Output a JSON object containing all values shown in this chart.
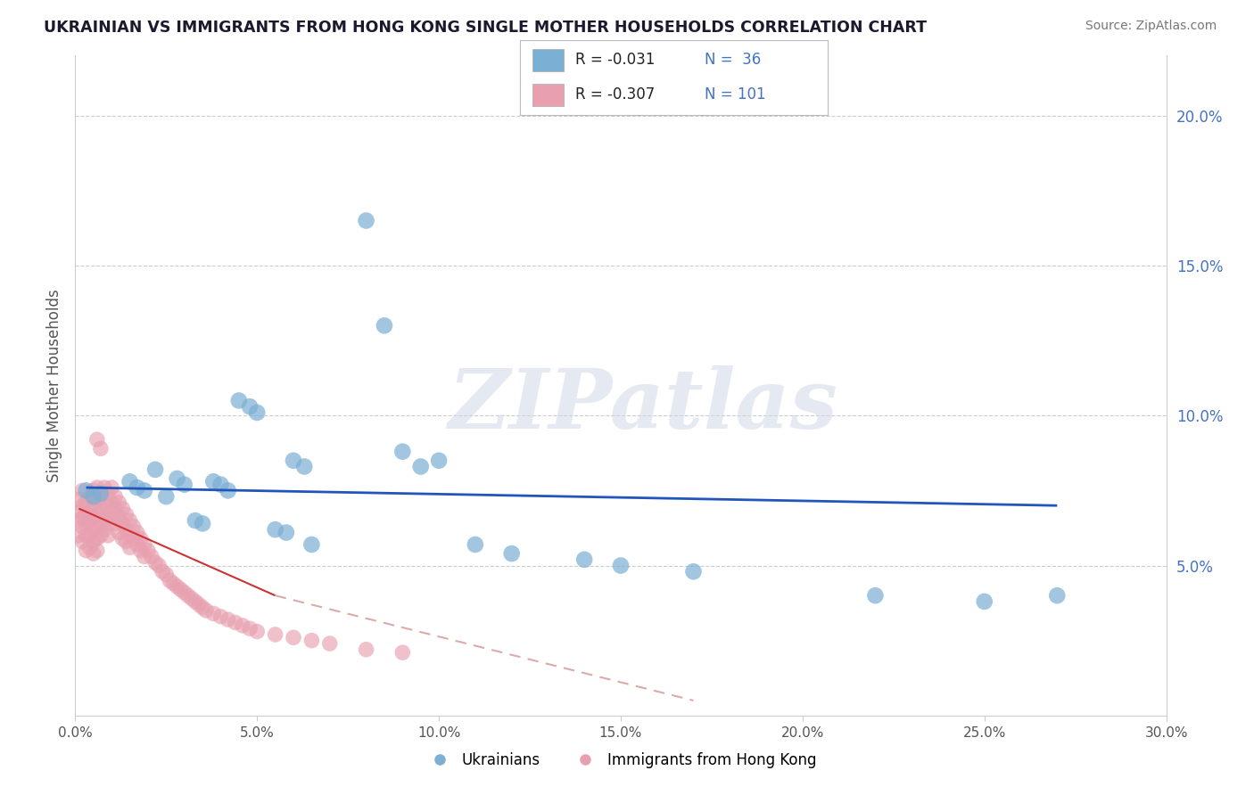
{
  "title": "UKRAINIAN VS IMMIGRANTS FROM HONG KONG SINGLE MOTHER HOUSEHOLDS CORRELATION CHART",
  "source": "Source: ZipAtlas.com",
  "ylabel": "Single Mother Households",
  "xlim": [
    0.0,
    0.3
  ],
  "ylim": [
    0.0,
    0.22
  ],
  "xticks": [
    0.0,
    0.05,
    0.1,
    0.15,
    0.2,
    0.25,
    0.3
  ],
  "xtick_labels": [
    "0.0%",
    "5.0%",
    "10.0%",
    "15.0%",
    "20.0%",
    "25.0%",
    "30.0%"
  ],
  "yticks_right": [
    0.05,
    0.1,
    0.15,
    0.2
  ],
  "ytick_labels_right": [
    "5.0%",
    "10.0%",
    "15.0%",
    "20.0%"
  ],
  "legend_r_blue": "-0.031",
  "legend_n_blue": "36",
  "legend_r_pink": "-0.307",
  "legend_n_pink": "101",
  "blue_color": "#7bafd4",
  "pink_color": "#e8a0b0",
  "blue_line_color": "#2255bb",
  "pink_line_color": "#cc3333",
  "pink_line_dash": "#ddaaaa",
  "watermark_text": "ZIPatlas",
  "legend_label_blue": "Ukrainians",
  "legend_label_pink": "Immigrants from Hong Kong",
  "blue_scatter": [
    [
      0.003,
      0.075
    ],
    [
      0.005,
      0.073
    ],
    [
      0.007,
      0.074
    ],
    [
      0.015,
      0.078
    ],
    [
      0.017,
      0.076
    ],
    [
      0.019,
      0.075
    ],
    [
      0.022,
      0.082
    ],
    [
      0.025,
      0.073
    ],
    [
      0.028,
      0.079
    ],
    [
      0.03,
      0.077
    ],
    [
      0.033,
      0.065
    ],
    [
      0.035,
      0.064
    ],
    [
      0.038,
      0.078
    ],
    [
      0.04,
      0.077
    ],
    [
      0.042,
      0.075
    ],
    [
      0.045,
      0.105
    ],
    [
      0.048,
      0.103
    ],
    [
      0.05,
      0.101
    ],
    [
      0.055,
      0.062
    ],
    [
      0.058,
      0.061
    ],
    [
      0.06,
      0.085
    ],
    [
      0.063,
      0.083
    ],
    [
      0.065,
      0.057
    ],
    [
      0.08,
      0.165
    ],
    [
      0.085,
      0.13
    ],
    [
      0.09,
      0.088
    ],
    [
      0.095,
      0.083
    ],
    [
      0.1,
      0.085
    ],
    [
      0.11,
      0.057
    ],
    [
      0.12,
      0.054
    ],
    [
      0.14,
      0.052
    ],
    [
      0.15,
      0.05
    ],
    [
      0.17,
      0.048
    ],
    [
      0.22,
      0.04
    ],
    [
      0.25,
      0.038
    ],
    [
      0.27,
      0.04
    ]
  ],
  "pink_scatter": [
    [
      0.001,
      0.068
    ],
    [
      0.001,
      0.072
    ],
    [
      0.001,
      0.065
    ],
    [
      0.001,
      0.06
    ],
    [
      0.002,
      0.07
    ],
    [
      0.002,
      0.075
    ],
    [
      0.002,
      0.066
    ],
    [
      0.002,
      0.063
    ],
    [
      0.002,
      0.058
    ],
    [
      0.003,
      0.071
    ],
    [
      0.003,
      0.067
    ],
    [
      0.003,
      0.064
    ],
    [
      0.003,
      0.06
    ],
    [
      0.003,
      0.055
    ],
    [
      0.004,
      0.073
    ],
    [
      0.004,
      0.068
    ],
    [
      0.004,
      0.064
    ],
    [
      0.004,
      0.06
    ],
    [
      0.004,
      0.056
    ],
    [
      0.005,
      0.075
    ],
    [
      0.005,
      0.07
    ],
    [
      0.005,
      0.066
    ],
    [
      0.005,
      0.062
    ],
    [
      0.005,
      0.058
    ],
    [
      0.005,
      0.054
    ],
    [
      0.006,
      0.092
    ],
    [
      0.006,
      0.076
    ],
    [
      0.006,
      0.072
    ],
    [
      0.006,
      0.067
    ],
    [
      0.006,
      0.063
    ],
    [
      0.006,
      0.059
    ],
    [
      0.006,
      0.055
    ],
    [
      0.007,
      0.089
    ],
    [
      0.007,
      0.073
    ],
    [
      0.007,
      0.069
    ],
    [
      0.007,
      0.064
    ],
    [
      0.007,
      0.06
    ],
    [
      0.008,
      0.076
    ],
    [
      0.008,
      0.071
    ],
    [
      0.008,
      0.066
    ],
    [
      0.008,
      0.062
    ],
    [
      0.009,
      0.074
    ],
    [
      0.009,
      0.069
    ],
    [
      0.009,
      0.064
    ],
    [
      0.009,
      0.06
    ],
    [
      0.01,
      0.076
    ],
    [
      0.01,
      0.071
    ],
    [
      0.01,
      0.066
    ],
    [
      0.011,
      0.073
    ],
    [
      0.011,
      0.069
    ],
    [
      0.011,
      0.064
    ],
    [
      0.012,
      0.071
    ],
    [
      0.012,
      0.066
    ],
    [
      0.012,
      0.061
    ],
    [
      0.013,
      0.069
    ],
    [
      0.013,
      0.064
    ],
    [
      0.013,
      0.059
    ],
    [
      0.014,
      0.067
    ],
    [
      0.014,
      0.062
    ],
    [
      0.014,
      0.058
    ],
    [
      0.015,
      0.065
    ],
    [
      0.015,
      0.06
    ],
    [
      0.015,
      0.056
    ],
    [
      0.016,
      0.063
    ],
    [
      0.016,
      0.059
    ],
    [
      0.017,
      0.061
    ],
    [
      0.017,
      0.057
    ],
    [
      0.018,
      0.059
    ],
    [
      0.018,
      0.055
    ],
    [
      0.019,
      0.057
    ],
    [
      0.019,
      0.053
    ],
    [
      0.02,
      0.055
    ],
    [
      0.021,
      0.053
    ],
    [
      0.022,
      0.051
    ],
    [
      0.023,
      0.05
    ],
    [
      0.024,
      0.048
    ],
    [
      0.025,
      0.047
    ],
    [
      0.026,
      0.045
    ],
    [
      0.027,
      0.044
    ],
    [
      0.028,
      0.043
    ],
    [
      0.029,
      0.042
    ],
    [
      0.03,
      0.041
    ],
    [
      0.031,
      0.04
    ],
    [
      0.032,
      0.039
    ],
    [
      0.033,
      0.038
    ],
    [
      0.034,
      0.037
    ],
    [
      0.035,
      0.036
    ],
    [
      0.036,
      0.035
    ],
    [
      0.038,
      0.034
    ],
    [
      0.04,
      0.033
    ],
    [
      0.042,
      0.032
    ],
    [
      0.044,
      0.031
    ],
    [
      0.046,
      0.03
    ],
    [
      0.048,
      0.029
    ],
    [
      0.05,
      0.028
    ],
    [
      0.055,
      0.027
    ],
    [
      0.06,
      0.026
    ],
    [
      0.065,
      0.025
    ],
    [
      0.07,
      0.024
    ],
    [
      0.08,
      0.022
    ],
    [
      0.09,
      0.021
    ]
  ],
  "blue_trend": [
    0.003,
    0.27,
    0.076,
    0.07
  ],
  "pink_trend_solid": [
    0.001,
    0.055,
    0.069,
    0.04
  ],
  "pink_trend_dash": [
    0.055,
    0.17,
    0.04,
    0.005
  ],
  "background_color": "#ffffff",
  "grid_color": "#cccccc"
}
